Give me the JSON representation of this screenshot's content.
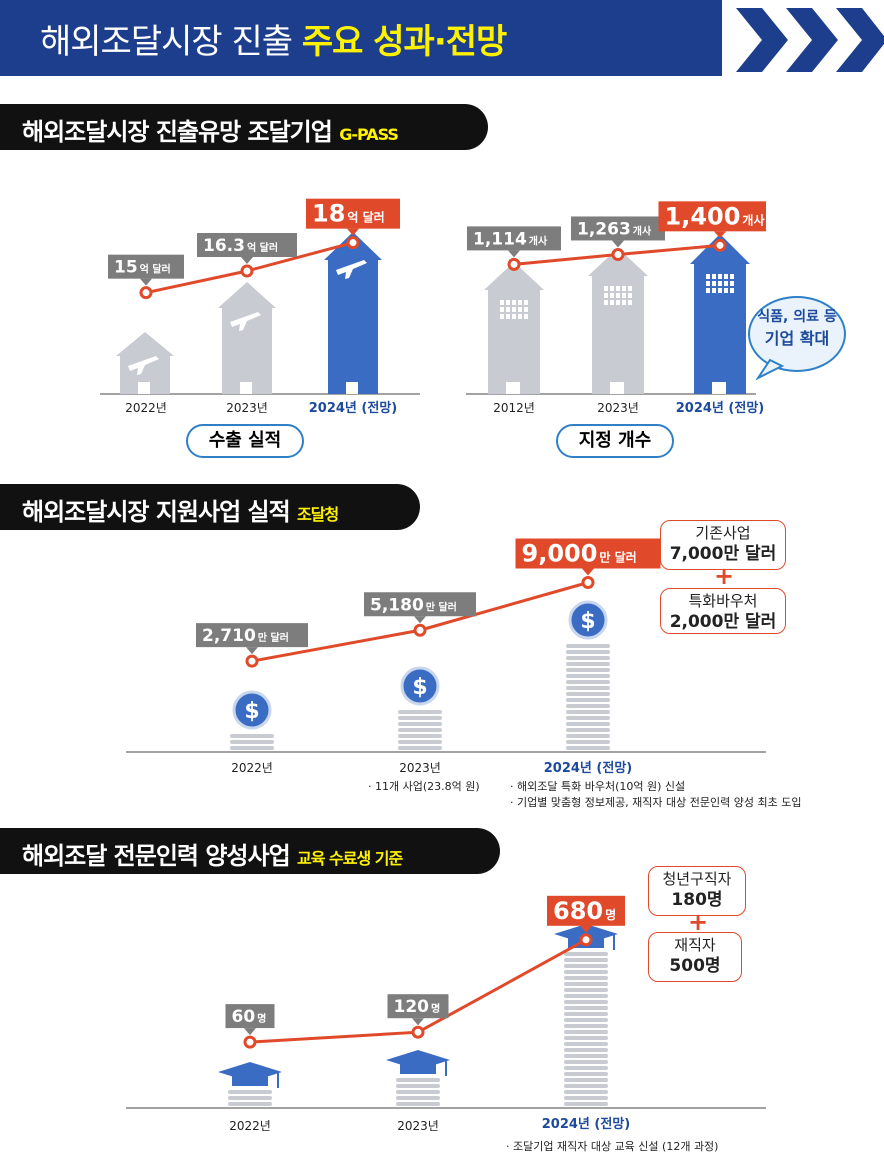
{
  "header": {
    "title_plain": "해외조달시장 진출",
    "title_highlight": "주요 성과·전망"
  },
  "colors": {
    "navy": "#1d3e8c",
    "orange": "#e04a2a",
    "blue": "#3a6cc4",
    "gray": "#c8cbd2",
    "label_gray": "#7d7d7d",
    "accent_blue": "#2f80c7",
    "yellow": "#fff200"
  },
  "sections": [
    {
      "title": "해외조달시장 진출유망 조달기업",
      "tag": "G-PASS"
    },
    {
      "title": "해외조달시장 지원사업 실적",
      "tag": "조달청"
    },
    {
      "title": "해외조달 전문인력 양성사업",
      "tag": "교육 수료생 기준"
    }
  ],
  "chart_data": [
    {
      "type": "line",
      "title": "수출 실적",
      "categories": [
        "2022년",
        "2023년",
        "2024년 (전망)"
      ],
      "values": [
        15,
        16.3,
        18
      ],
      "unit": "억 달러",
      "value_labels": [
        "15",
        "16.3",
        "18"
      ],
      "ylim": [
        13,
        19
      ]
    },
    {
      "type": "line",
      "title": "지정 개수",
      "categories": [
        "2012년",
        "2023년",
        "2024년 (전망)"
      ],
      "values": [
        1114,
        1263,
        1400
      ],
      "unit": "개사",
      "value_labels": [
        "1,114",
        "1,263",
        "1,400"
      ],
      "ylim": [
        700,
        1600
      ],
      "bubble": [
        "식품, 의료 등",
        "기업 확대"
      ]
    },
    {
      "type": "line",
      "title": "해외조달시장 지원사업 실적",
      "categories": [
        "2022년",
        "2023년",
        "2024년 (전망)"
      ],
      "values": [
        2710,
        5180,
        9000
      ],
      "unit": "만 달러",
      "value_labels": [
        "2,710",
        "5,180",
        "9,000"
      ],
      "ylim": [
        0,
        10000
      ],
      "notes": {
        "2023": [
          "· 11개 사업(23.8억 원)"
        ],
        "2024": [
          "· 해외조달 특화 바우처(10억 원) 신설",
          "· 기업별 맞춤형 정보제공, 재직자 대상 전문인력 양성 최초 도입"
        ]
      },
      "breakdown": [
        {
          "label": "기존사업",
          "value": "7,000만 달러"
        },
        {
          "label": "특화바우처",
          "value": "2,000만 달러"
        }
      ],
      "plus": "+"
    },
    {
      "type": "line",
      "title": "해외조달 전문인력 양성사업",
      "categories": [
        "2022년",
        "2023년",
        "2024년 (전망)"
      ],
      "values": [
        60,
        120,
        680
      ],
      "unit": "명",
      "value_labels": [
        "60",
        "120",
        "680"
      ],
      "ylim": [
        0,
        800
      ],
      "notes": {
        "2024": [
          "· 조달기업 재직자 대상 교육 신설 (12개 과정)"
        ]
      },
      "breakdown": [
        {
          "label": "청년구직자",
          "value": "180명"
        },
        {
          "label": "재직자",
          "value": "500명"
        }
      ],
      "plus": "+"
    }
  ]
}
